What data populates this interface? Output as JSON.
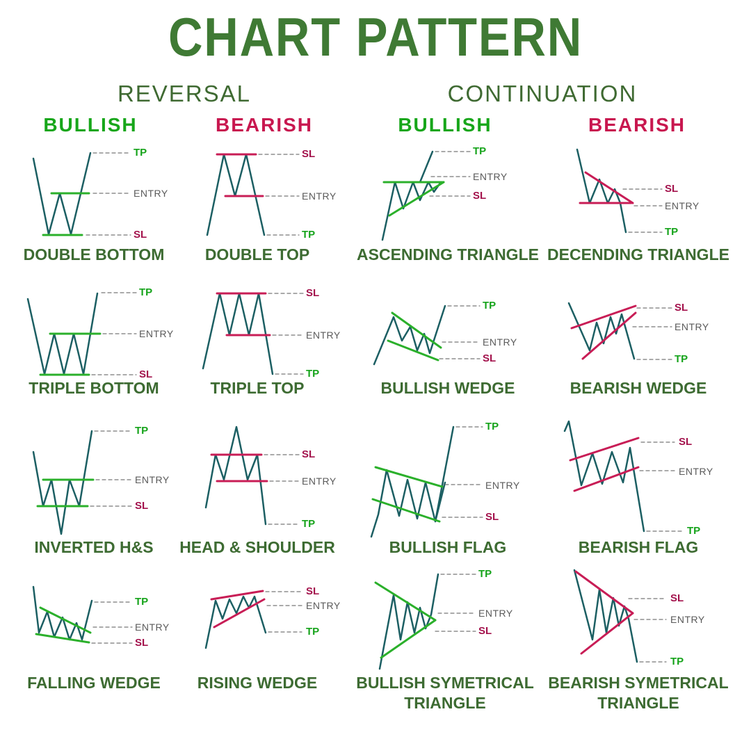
{
  "title": "CHART PATTERN",
  "sections": {
    "reversal": "REVERSAL",
    "continuation": "CONTINUATION"
  },
  "categories": {
    "bullish": "BULLISH",
    "bearish": "BEARISH"
  },
  "labels": {
    "tp": "TP",
    "sl": "SL",
    "entry": "ENTRY"
  },
  "colors": {
    "price_line": "#1c5f63",
    "bullish_level": "#2bb02b",
    "bearish_level": "#c81d56",
    "title": "#3f7a34",
    "pattern_name": "#3d6b32"
  },
  "patterns": {
    "double_bottom": "DOUBLE BOTTOM",
    "double_top": "DOUBLE TOP",
    "ascending_triangle": "ASCENDING TRIANGLE",
    "decending_triangle": "DECENDING TRIANGLE",
    "triple_bottom": "TRIPLE BOTTOM",
    "triple_top": "TRIPLE TOP",
    "bullish_wedge": "BULLISH WEDGE",
    "bearish_wedge": "BEARISH WEDGE",
    "inverted_hs": "INVERTED H&S",
    "head_shoulder": "HEAD & SHOULDER",
    "bullish_flag": "BULLISH FLAG",
    "bearish_flag": "BEARISH FLAG",
    "falling_wedge": "FALLING WEDGE",
    "rising_wedge": "RISING WEDGE",
    "bullish_symmetrical_line1": "BULLISH SYMETRICAL",
    "bullish_symmetrical_line2": "TRIANGLE",
    "bearish_symmetrical_line1": "BEARISH SYMETRICAL",
    "bearish_symmetrical_line2": "TRIANGLE"
  }
}
